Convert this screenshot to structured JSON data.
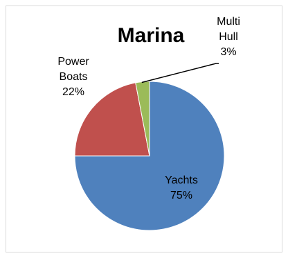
{
  "chart_data": {
    "type": "pie",
    "title": "Marina",
    "slices": [
      {
        "label": "Yachts",
        "value": 75,
        "value_label": "75%",
        "color": "#4f81bd"
      },
      {
        "label": "Power Boats",
        "value": 22,
        "value_label": "22%",
        "color": "#c0504d"
      },
      {
        "label": "Multi Hull",
        "value": 3,
        "value_label": "3%",
        "color": "#9bbb59"
      }
    ],
    "legend": "none"
  }
}
